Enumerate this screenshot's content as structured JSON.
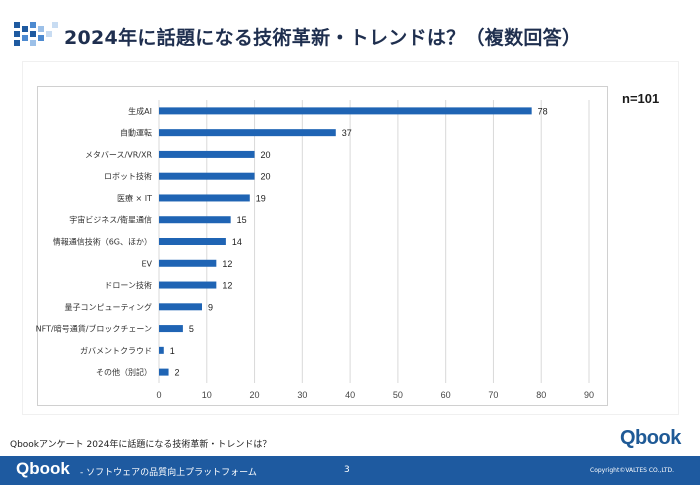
{
  "header": {
    "title": "2024年に話題になる技術革新・トレンドは？（複数回答）"
  },
  "chart_data": {
    "type": "bar",
    "orientation": "horizontal",
    "categories": [
      "生成AI",
      "自動運転",
      "メタバース/VR/XR",
      "ロボット技術",
      "医療 × IT",
      "宇宙ビジネス/衛星通信",
      "情報通信技術（6G、ほか）",
      "EV",
      "ドローン技術",
      "量子コンピューティング",
      "NFT/暗号通貨/ブロックチェーン",
      "ガバメントクラウド",
      "その他（別記）"
    ],
    "values": [
      78,
      37,
      20,
      20,
      19,
      15,
      14,
      12,
      12,
      9,
      5,
      1,
      2
    ],
    "xlim": [
      0,
      90
    ],
    "xticks": [
      0,
      10,
      20,
      30,
      40,
      50,
      60,
      70,
      80,
      90
    ],
    "grid": true,
    "bar_color": "#1f64b4",
    "annotation": "n=101"
  },
  "footer": {
    "source": "Qbookアンケート 2024年に話題になる技術革新・トレンドは？",
    "logo": "Qbook",
    "bar_logo": "Qbook",
    "tagline": "- ソフトウェアの品質向上プラットフォーム",
    "page_number": "3",
    "copyright": "Copyright©VALTES CO.,LTD."
  },
  "colors": {
    "brand_blue": "#1e5aa0",
    "bar": "#1f64b4",
    "title": "#1f2f4f"
  }
}
